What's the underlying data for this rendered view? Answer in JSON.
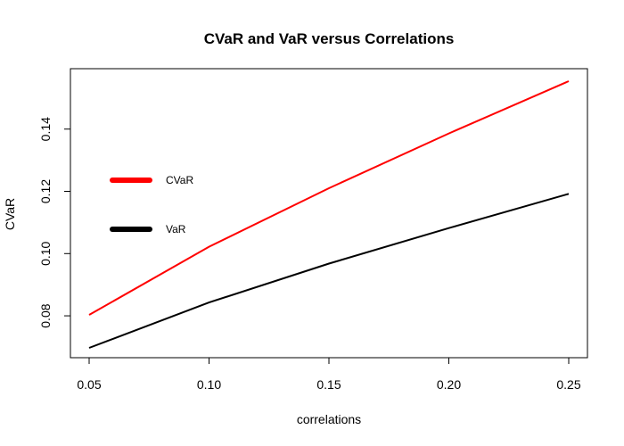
{
  "chart_data": {
    "type": "line",
    "title": "CVaR and VaR versus Correlations",
    "xlabel": "correlations",
    "ylabel": "CVaR",
    "x": [
      0.05,
      0.1,
      0.15,
      0.2,
      0.25
    ],
    "xlim": [
      0.05,
      0.25
    ],
    "ylim": [
      0.0697,
      0.1554
    ],
    "x_ticks": [
      "0.05",
      "0.10",
      "0.15",
      "0.20",
      "0.25"
    ],
    "y_ticks": [
      "0.08",
      "0.10",
      "0.12",
      "0.14"
    ],
    "grid": false,
    "legend_position": "left",
    "series": [
      {
        "name": "CVaR",
        "color": "#ff0000",
        "values": [
          0.0803,
          0.1022,
          0.121,
          0.1386,
          0.1554
        ]
      },
      {
        "name": "VaR",
        "color": "#000000",
        "values": [
          0.0697,
          0.0843,
          0.0968,
          0.1082,
          0.1192
        ]
      }
    ]
  }
}
